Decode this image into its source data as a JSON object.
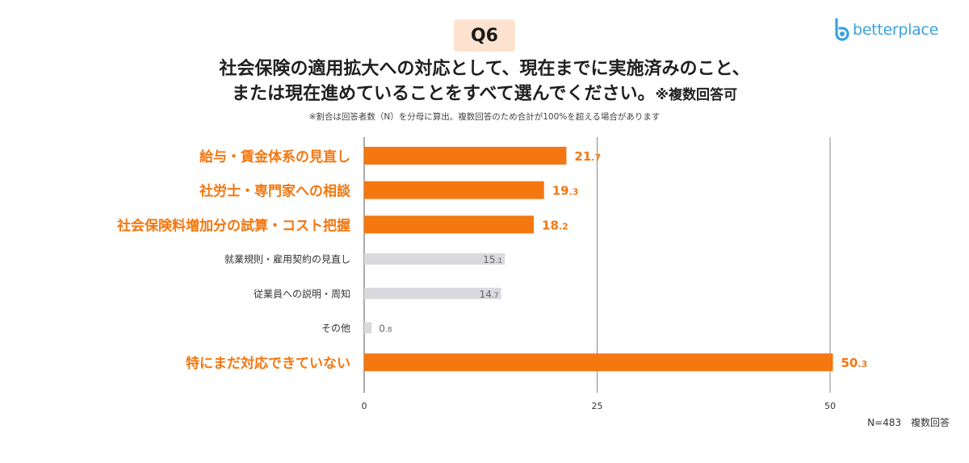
{
  "question": "Q6",
  "logo": {
    "text": "betterplace",
    "icon": "betterplace-logo-icon",
    "color": "#3aa2e0"
  },
  "title": {
    "line1": "社会保険の適用拡大への対応として、現在までに実施済みのこと、",
    "line2": "または現在進めていることをすべて選んでください。",
    "suffix": "※複数回答可"
  },
  "note": "※割合は回答者数（N）を分母に算出。複数回答のため合計が100%を超える場合があります",
  "footnote": "N=483　複数回答",
  "colors": {
    "highlight": "#f47710",
    "muted": "#d9d9de",
    "highlight_text": "#f47710",
    "muted_text": "#666666",
    "badge": "#fde3cf"
  },
  "chart_data": {
    "type": "bar",
    "orientation": "horizontal",
    "categories": [
      "給与・賃金体系の見直し",
      "社労士・専門家への相談",
      "社会保険料増加分の試算・コスト把握",
      "就業規則・雇用契約の見直し",
      "従業員への説明・周知",
      "その他",
      "特にまだ対応できていない"
    ],
    "values": [
      21.7,
      19.3,
      18.2,
      15.1,
      14.7,
      0.8,
      50.3
    ],
    "value_labels": [
      [
        "21",
        ".7"
      ],
      [
        "19",
        ".3"
      ],
      [
        "18",
        ".2"
      ],
      [
        "15",
        ".1"
      ],
      [
        "14",
        ".7"
      ],
      [
        "0",
        ".8"
      ],
      [
        "50",
        ".3"
      ]
    ],
    "highlight": [
      true,
      true,
      true,
      false,
      false,
      false,
      true
    ],
    "xlim": [
      0,
      50
    ],
    "xticks": [
      0,
      25,
      50
    ],
    "grid": true
  }
}
